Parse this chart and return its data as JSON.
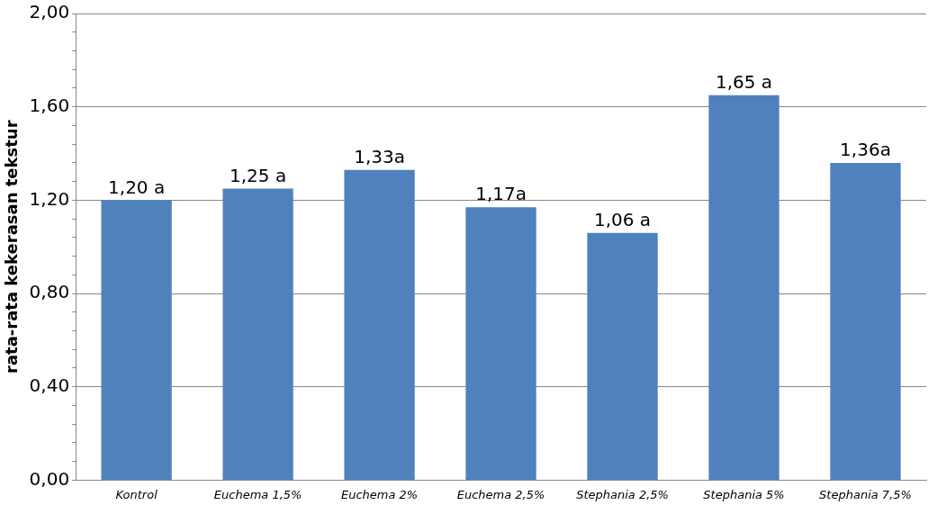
{
  "chart_data": {
    "type": "bar",
    "ylabel": "rata-rata kekerasan tekstur",
    "categories": [
      "Kontrol",
      "Euchema 1,5%",
      "Euchema 2%",
      "Euchema 2,5%",
      "Stephania 2,5%",
      "Stephania 5%",
      "Stephania 7,5%"
    ],
    "values": [
      1.2,
      1.25,
      1.33,
      1.17,
      1.06,
      1.65,
      1.36
    ],
    "value_labels": [
      "1,20 a",
      "1,25 a",
      "1,33a",
      "1,17a",
      "1,06 a",
      "1,65 a",
      "1,36a"
    ],
    "color": "#4f81bd",
    "ylim": [
      0,
      2
    ],
    "yticks": [
      {
        "value": 0,
        "label": "0,00"
      },
      {
        "value": 0.08,
        "label": null
      },
      {
        "value": 0.16,
        "label": null
      },
      {
        "value": 0.24,
        "label": null
      },
      {
        "value": 0.32,
        "label": null
      },
      {
        "value": 0.4,
        "label": "0,40"
      },
      {
        "value": 0.48,
        "label": null
      },
      {
        "value": 0.56,
        "label": null
      },
      {
        "value": 0.64,
        "label": null
      },
      {
        "value": 0.72,
        "label": null
      },
      {
        "value": 0.8,
        "label": "0,80"
      },
      {
        "value": 0.88,
        "label": null
      },
      {
        "value": 0.96,
        "label": null
      },
      {
        "value": 1.04,
        "label": null
      },
      {
        "value": 1.12,
        "label": null
      },
      {
        "value": 1.2,
        "label": "1,20"
      },
      {
        "value": 1.28,
        "label": null
      },
      {
        "value": 1.36,
        "label": null
      },
      {
        "value": 1.44,
        "label": null
      },
      {
        "value": 1.52,
        "label": null
      },
      {
        "value": 1.6,
        "label": "1,60"
      },
      {
        "value": 1.68,
        "label": null
      },
      {
        "value": 1.76,
        "label": null
      },
      {
        "value": 1.84,
        "label": null
      },
      {
        "value": 1.92,
        "label": null
      },
      {
        "value": 2,
        "label": "2,00"
      }
    ],
    "grid": "y"
  }
}
